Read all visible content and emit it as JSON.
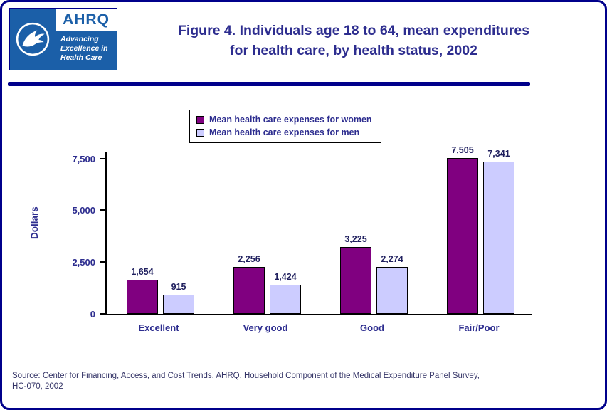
{
  "header": {
    "title_line1": "Figure 4. Individuals age 18 to 64, mean expenditures",
    "title_line2": "for health care, by health status, 2002",
    "logo": {
      "ahrq_text": "AHRQ",
      "tagline_line1": "Advancing",
      "tagline_line2": "Excellence in",
      "tagline_line3": "Health Care"
    }
  },
  "colors": {
    "page_border": "#00008B",
    "title_text": "#2d2d8f",
    "logo_blue": "#1b5fa8",
    "women_bar": "#800080",
    "men_bar": "#CCCCFF"
  },
  "chart_data": {
    "type": "bar",
    "title": "Individuals age 18 to 64, mean expenditures for health care, by health status, 2002",
    "categories": [
      "Excellent",
      "Very good",
      "Good",
      "Fair/Poor"
    ],
    "series": [
      {
        "key": "women",
        "name": "Mean health care expenses for women",
        "color": "#800080",
        "values": [
          1654,
          2256,
          3225,
          7505
        ],
        "labels": [
          "1,654",
          "2,256",
          "3,225",
          "7,505"
        ]
      },
      {
        "key": "men",
        "name": "Mean health care expenses for men",
        "color": "#CCCCFF",
        "values": [
          915,
          1424,
          2274,
          7341
        ],
        "labels": [
          "915",
          "1,424",
          "2,274",
          "7,341"
        ]
      }
    ],
    "xlabel": "",
    "ylabel": "Dollars",
    "ylim": [
      0,
      7900
    ],
    "yticks": [
      0,
      2500,
      5000,
      7500
    ],
    "ytick_labels": [
      "0",
      "2,500",
      "5,000",
      "7,500"
    ],
    "grid": false,
    "legend_position": "top-center"
  },
  "footer": {
    "source_line1": "Source: Center for Financing, Access, and Cost Trends, AHRQ, Household Component of the Medical Expenditure Panel Survey,",
    "source_line2": "HC-070, 2002"
  }
}
